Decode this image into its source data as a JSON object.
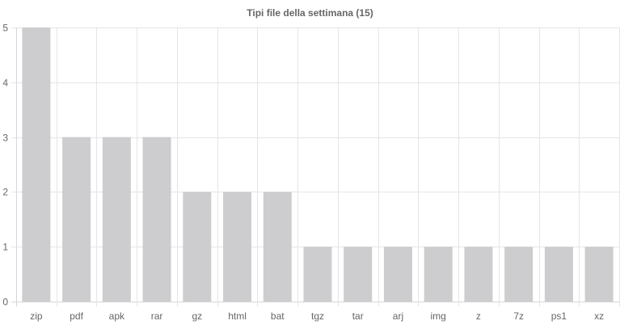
{
  "chart_data": {
    "type": "bar",
    "title": "Tipi file della settimana (15)",
    "xlabel": "",
    "ylabel": "",
    "categories": [
      "zip",
      "pdf",
      "apk",
      "rar",
      "gz",
      "html",
      "bat",
      "tgz",
      "tar",
      "arj",
      "img",
      "z",
      "7z",
      "ps1",
      "xz"
    ],
    "values": [
      5,
      3,
      3,
      3,
      2,
      2,
      2,
      1,
      1,
      1,
      1,
      1,
      1,
      1,
      1
    ],
    "ylim": [
      0,
      5
    ],
    "yticks": [
      0,
      1,
      2,
      3,
      4,
      5
    ],
    "grid": true,
    "legend": "none",
    "bar_color": "#cdcdcf"
  }
}
